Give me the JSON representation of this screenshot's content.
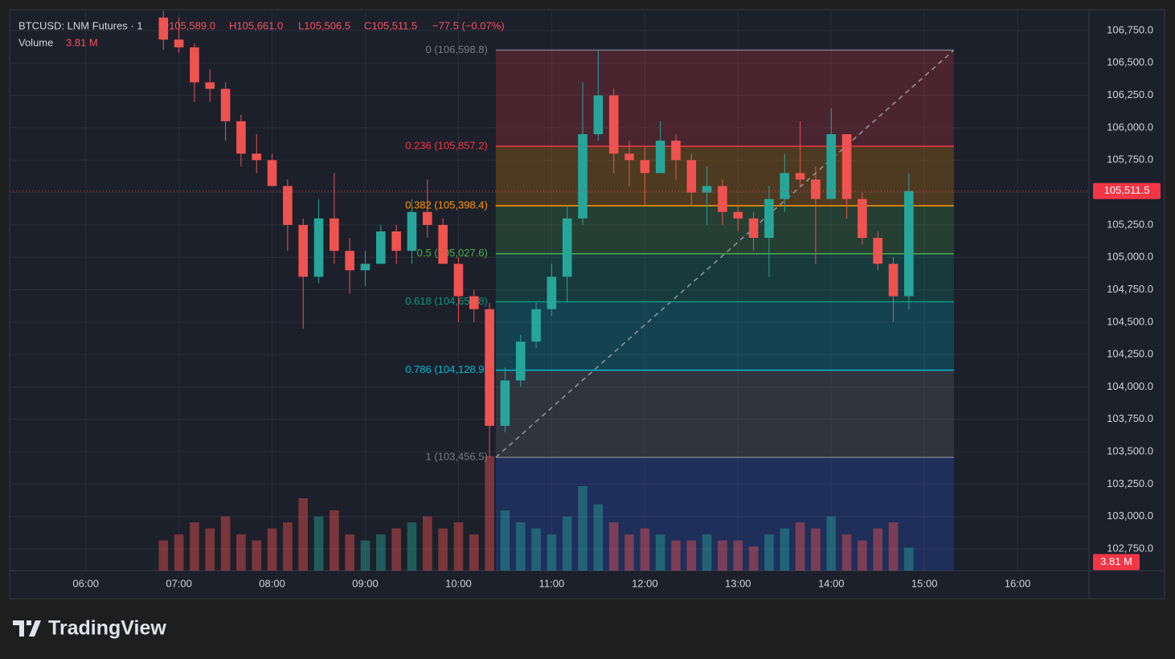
{
  "chart_data": {
    "type": "candlestick",
    "header": {
      "symbol": "BTCUSD: LNM Futures · 1",
      "open": "O105,589.0",
      "high": "H105,661.0",
      "low": "L105,506.5",
      "close": "C105,511.5",
      "change": "−77.5 (−0.07%)",
      "volume_title": "Volume",
      "volume_value": "3.81 M"
    },
    "brand": "TradingView",
    "x": [
      "06:50",
      "07:00",
      "07:10",
      "07:20",
      "07:30",
      "07:40",
      "07:50",
      "08:00",
      "08:10",
      "08:20",
      "08:30",
      "08:40",
      "08:50",
      "09:00",
      "09:10",
      "09:20",
      "09:30",
      "09:40",
      "09:50",
      "10:00",
      "10:10",
      "10:20",
      "10:30",
      "10:40",
      "10:50",
      "11:00",
      "11:10",
      "11:20",
      "11:30",
      "11:40",
      "11:50",
      "12:00",
      "12:10",
      "12:20",
      "12:30",
      "12:40",
      "12:50",
      "13:00",
      "13:10",
      "13:20",
      "13:30",
      "13:40",
      "13:50",
      "14:00",
      "14:10",
      "14:20",
      "14:30",
      "14:40",
      "14:50"
    ],
    "open": [
      106850,
      106680,
      106620,
      106350,
      106300,
      106050,
      105800,
      105750,
      105550,
      105250,
      104850,
      105300,
      105050,
      104900,
      104950,
      105200,
      105050,
      105350,
      105250,
      104950,
      104700,
      104600,
      103700,
      104050,
      104350,
      104600,
      104850,
      105300,
      105950,
      106250,
      105800,
      105750,
      105650,
      105900,
      105750,
      105500,
      105550,
      105350,
      105300,
      105150,
      105450,
      105650,
      105600,
      105450,
      105950,
      105450,
      105150,
      104950,
      104700
    ],
    "high": [
      106900,
      106850,
      106650,
      106450,
      106350,
      106100,
      105950,
      105800,
      105600,
      105300,
      105450,
      105650,
      105150,
      105050,
      105250,
      105250,
      105450,
      105600,
      105300,
      105000,
      104750,
      104650,
      104150,
      104400,
      104650,
      104950,
      105400,
      106350,
      106598.8,
      106300,
      105900,
      105850,
      106050,
      105950,
      105800,
      105700,
      105600,
      105400,
      105350,
      105550,
      105800,
      106050,
      105700,
      106150,
      105950,
      105500,
      105200,
      105000,
      105650
    ],
    "low": [
      106600,
      106580,
      106200,
      106200,
      105900,
      105700,
      105650,
      105550,
      105050,
      104450,
      104800,
      104950,
      104720,
      104780,
      104950,
      104950,
      104950,
      105150,
      104950,
      104500,
      104500,
      103456.5,
      103650,
      104000,
      104300,
      104550,
      104650,
      105250,
      105900,
      105650,
      105550,
      105400,
      105650,
      105600,
      105400,
      105250,
      105250,
      105200,
      105050,
      104850,
      105350,
      105550,
      104950,
      105450,
      105300,
      105100,
      104900,
      104500,
      104600
    ],
    "close": [
      106680,
      106620,
      106350,
      106300,
      106050,
      105800,
      105750,
      105550,
      105250,
      104850,
      105300,
      105050,
      104900,
      104950,
      105200,
      105050,
      105350,
      105250,
      104950,
      104700,
      104600,
      103700,
      104050,
      104350,
      104600,
      104850,
      105300,
      105950,
      106250,
      105800,
      105750,
      105650,
      105900,
      105750,
      105500,
      105550,
      105350,
      105300,
      105150,
      105450,
      105650,
      105600,
      105450,
      105950,
      105450,
      105150,
      104950,
      104700,
      105511.5
    ],
    "volume": [
      5,
      6,
      8,
      7,
      9,
      6,
      5,
      7,
      8,
      12,
      9,
      10,
      6,
      5,
      6,
      7,
      8,
      9,
      7,
      8,
      6,
      19,
      10,
      8,
      7,
      6,
      9,
      14,
      11,
      8,
      6,
      7,
      6,
      5,
      5,
      6,
      5,
      5,
      4,
      6,
      7,
      8,
      7,
      9,
      6,
      5,
      7,
      8,
      3.81
    ],
    "up_color": "#26a69a",
    "down_color": "#ef5350",
    "xlim": [
      "05:11",
      "16:46"
    ],
    "xticks": [
      "06:00",
      "07:00",
      "08:00",
      "09:00",
      "10:00",
      "11:00",
      "12:00",
      "13:00",
      "14:00",
      "15:00",
      "16:00"
    ],
    "ylim": [
      102583,
      106911
    ],
    "yticks": [
      {
        "value": 102750,
        "label": "102,750.0"
      },
      {
        "value": 103000,
        "label": "103,000.0"
      },
      {
        "value": 103250,
        "label": "103,250.0"
      },
      {
        "value": 103500,
        "label": "103,500.0"
      },
      {
        "value": 103750,
        "label": "103,750.0"
      },
      {
        "value": 104000,
        "label": "104,000.0"
      },
      {
        "value": 104250,
        "label": "104,250.0"
      },
      {
        "value": 104500,
        "label": "104,500.0"
      },
      {
        "value": 104750,
        "label": "104,750.0"
      },
      {
        "value": 105000,
        "label": "105,000.0"
      },
      {
        "value": 105250,
        "label": "105,250.0"
      },
      {
        "value": 105500,
        "label": "105,500.0"
      },
      {
        "value": 105750,
        "label": "105,750.0"
      },
      {
        "value": 106000,
        "label": "106,000.0"
      },
      {
        "value": 106250,
        "label": "106,250.0"
      },
      {
        "value": 106500,
        "label": "106,500.0"
      },
      {
        "value": 106750,
        "label": "106,750.0"
      }
    ],
    "volume_lim": [
      0,
      20
    ],
    "grid": true,
    "last_price": {
      "value": 105511.5,
      "label": "105,511.5",
      "color": "#f23645"
    },
    "fib": {
      "x": [
        "10:24",
        "15:19"
      ],
      "extension_color": "#2962ff",
      "levels": [
        {
          "value": 106598.8,
          "label": "0 (106,598.8)",
          "color": "#787b86"
        },
        {
          "value": 105857.2,
          "label": "0.236 (105,857.2)",
          "color": "#f23645"
        },
        {
          "value": 105398.4,
          "label": "0.382 (105,398.4)",
          "color": "#ff9800"
        },
        {
          "value": 105027.6,
          "label": "0.5 (105,027.6)",
          "color": "#4caf50"
        },
        {
          "value": 104656.8,
          "label": "0.618 (104,656.8)",
          "color": "#089981"
        },
        {
          "value": 104128.9,
          "label": "0.786 (104,128.9)",
          "color": "#00bcd4"
        },
        {
          "value": 103456.5,
          "label": "1 (103,456.5)",
          "color": "#787b86"
        }
      ]
    }
  }
}
